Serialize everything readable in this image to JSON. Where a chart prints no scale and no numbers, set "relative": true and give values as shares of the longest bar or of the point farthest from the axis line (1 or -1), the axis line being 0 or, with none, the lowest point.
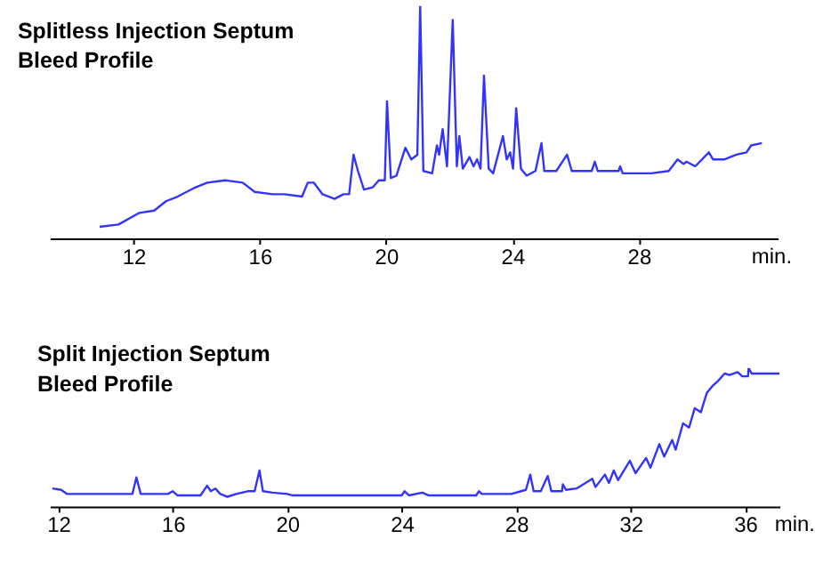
{
  "chart_data": [
    {
      "type": "line",
      "relative": true,
      "title": "Splitless Injection Septum\nBleed Profile",
      "xlabel": "min.",
      "xlim": [
        9.35,
        32.4
      ],
      "xticks": [
        12,
        16,
        20,
        24,
        28
      ],
      "x": [
        10.93,
        11.53,
        12.19,
        12.66,
        13.03,
        13.4,
        13.97,
        14.34,
        14.9,
        15.46,
        15.84,
        16.4,
        16.78,
        17.34,
        17.52,
        17.71,
        17.99,
        18.37,
        18.65,
        18.83,
        18.97,
        19.11,
        19.3,
        19.58,
        19.77,
        19.96,
        20.03,
        20.15,
        20.33,
        20.61,
        20.8,
        20.99,
        21.08,
        21.18,
        21.46,
        21.61,
        21.68,
        21.79,
        21.93,
        22.11,
        22.24,
        22.32,
        22.43,
        22.64,
        22.77,
        22.88,
        22.99,
        23.1,
        23.25,
        23.39,
        23.7,
        23.82,
        23.93,
        24.02,
        24.12,
        24.27,
        24.45,
        24.73,
        24.92,
        25.01,
        25.39,
        25.73,
        25.88,
        26.51,
        26.61,
        26.7,
        27.36,
        27.41,
        27.49,
        28.39,
        28.95,
        29.23,
        29.42,
        29.51,
        29.79,
        30.22,
        30.35,
        30.72,
        31.09,
        31.41,
        31.56,
        31.9
      ],
      "series": [
        {
          "color": "#3333ff",
          "values": [
            0.05,
            0.06,
            0.11,
            0.12,
            0.16,
            0.18,
            0.22,
            0.24,
            0.25,
            0.24,
            0.2,
            0.19,
            0.19,
            0.18,
            0.24,
            0.24,
            0.19,
            0.17,
            0.19,
            0.19,
            0.36,
            0.29,
            0.21,
            0.22,
            0.25,
            0.25,
            0.59,
            0.26,
            0.27,
            0.39,
            0.34,
            0.36,
            1.0,
            0.29,
            0.28,
            0.4,
            0.36,
            0.47,
            0.31,
            0.94,
            0.31,
            0.44,
            0.3,
            0.35,
            0.31,
            0.34,
            0.3,
            0.7,
            0.3,
            0.28,
            0.44,
            0.34,
            0.37,
            0.3,
            0.56,
            0.3,
            0.27,
            0.29,
            0.41,
            0.29,
            0.29,
            0.36,
            0.29,
            0.29,
            0.33,
            0.29,
            0.29,
            0.31,
            0.28,
            0.28,
            0.29,
            0.34,
            0.32,
            0.33,
            0.31,
            0.37,
            0.34,
            0.34,
            0.36,
            0.37,
            0.4,
            0.41
          ]
        }
      ]
    },
    {
      "type": "line",
      "relative": true,
      "title": "Split Injection Septum\nBleed Profile",
      "xlabel": "min.",
      "xlim": [
        11.7,
        37.2
      ],
      "xticks": [
        12,
        16,
        20,
        24,
        28,
        32,
        36
      ],
      "x": [
        11.79,
        12.1,
        12.31,
        14.59,
        14.73,
        14.88,
        15.83,
        16.0,
        16.16,
        16.97,
        17.2,
        17.33,
        17.49,
        17.66,
        17.91,
        18.22,
        18.62,
        18.86,
        19.03,
        19.15,
        19.48,
        20.0,
        20.17,
        24.0,
        24.1,
        24.25,
        24.72,
        24.93,
        26.6,
        26.7,
        26.8,
        27.83,
        28.34,
        28.49,
        28.61,
        28.86,
        29.1,
        29.23,
        29.6,
        29.63,
        29.74,
        30.11,
        30.66,
        30.77,
        31.1,
        31.24,
        31.41,
        31.56,
        31.97,
        32.17,
        32.54,
        32.69,
        33.0,
        33.17,
        33.45,
        33.57,
        33.83,
        34.04,
        34.24,
        34.45,
        34.66,
        34.86,
        35.07,
        35.28,
        35.45,
        35.74,
        35.9,
        36.1,
        36.12,
        36.23,
        37.2
      ],
      "series": [
        {
          "color": "#3333ff",
          "values": [
            0.13,
            0.12,
            0.09,
            0.09,
            0.21,
            0.09,
            0.09,
            0.11,
            0.08,
            0.08,
            0.15,
            0.11,
            0.13,
            0.09,
            0.07,
            0.09,
            0.11,
            0.11,
            0.26,
            0.11,
            0.1,
            0.09,
            0.08,
            0.08,
            0.11,
            0.08,
            0.1,
            0.08,
            0.08,
            0.11,
            0.09,
            0.09,
            0.12,
            0.23,
            0.11,
            0.11,
            0.22,
            0.11,
            0.11,
            0.16,
            0.12,
            0.13,
            0.2,
            0.14,
            0.23,
            0.17,
            0.26,
            0.19,
            0.33,
            0.24,
            0.35,
            0.28,
            0.45,
            0.36,
            0.48,
            0.41,
            0.6,
            0.57,
            0.71,
            0.68,
            0.82,
            0.87,
            0.91,
            0.96,
            0.95,
            0.97,
            0.94,
            0.94,
            1.0,
            0.96,
            0.96
          ]
        }
      ]
    }
  ]
}
